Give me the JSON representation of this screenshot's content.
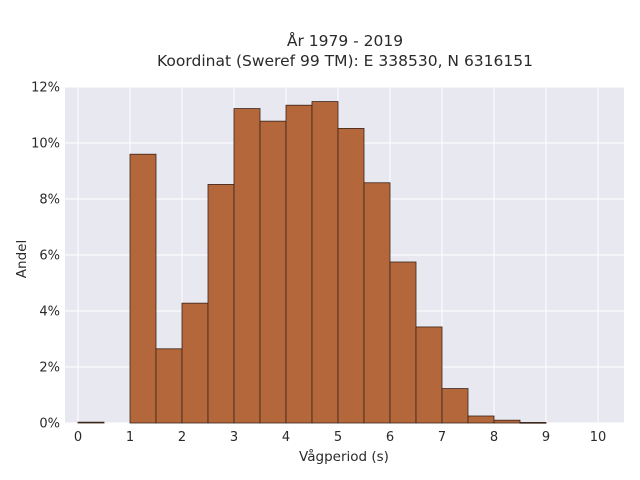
{
  "chart_data": {
    "type": "bar",
    "title_lines": [
      "År 1979 - 2019",
      "Koordinat (Sweref 99 TM): E 338530, N 6316151"
    ],
    "xlabel": "Vågperiod (s)",
    "ylabel": "Andel",
    "bin_edges": [
      0,
      0.5,
      1,
      1.5,
      2,
      2.5,
      3,
      3.5,
      4,
      4.5,
      5,
      5.5,
      6,
      6.5,
      7,
      7.5,
      8,
      8.5,
      9,
      9.5,
      10
    ],
    "values": [
      0.03,
      0,
      9.6,
      2.65,
      4.28,
      8.52,
      11.23,
      10.78,
      11.35,
      11.48,
      10.52,
      8.58,
      5.75,
      3.43,
      1.23,
      0.25,
      0.1,
      0.02,
      0,
      0
    ],
    "xlim": [
      -0.25,
      10.5
    ],
    "ylim": [
      0,
      12
    ],
    "xticks": [
      0,
      1,
      2,
      3,
      4,
      5,
      6,
      7,
      8,
      9,
      10
    ],
    "xtick_labels": [
      "0",
      "1",
      "2",
      "3",
      "4",
      "5",
      "6",
      "7",
      "8",
      "9",
      "10"
    ],
    "yticks": [
      0,
      2,
      4,
      6,
      8,
      10,
      12
    ],
    "ytick_labels": [
      "0%",
      "2%",
      "4%",
      "6%",
      "8%",
      "10%",
      "12%"
    ],
    "grid": true,
    "colors": {
      "bar_fill": "#b5673c",
      "bar_edge": "#3a2418",
      "plot_bg": "#e8e8f0",
      "grid": "#ffffff"
    }
  }
}
